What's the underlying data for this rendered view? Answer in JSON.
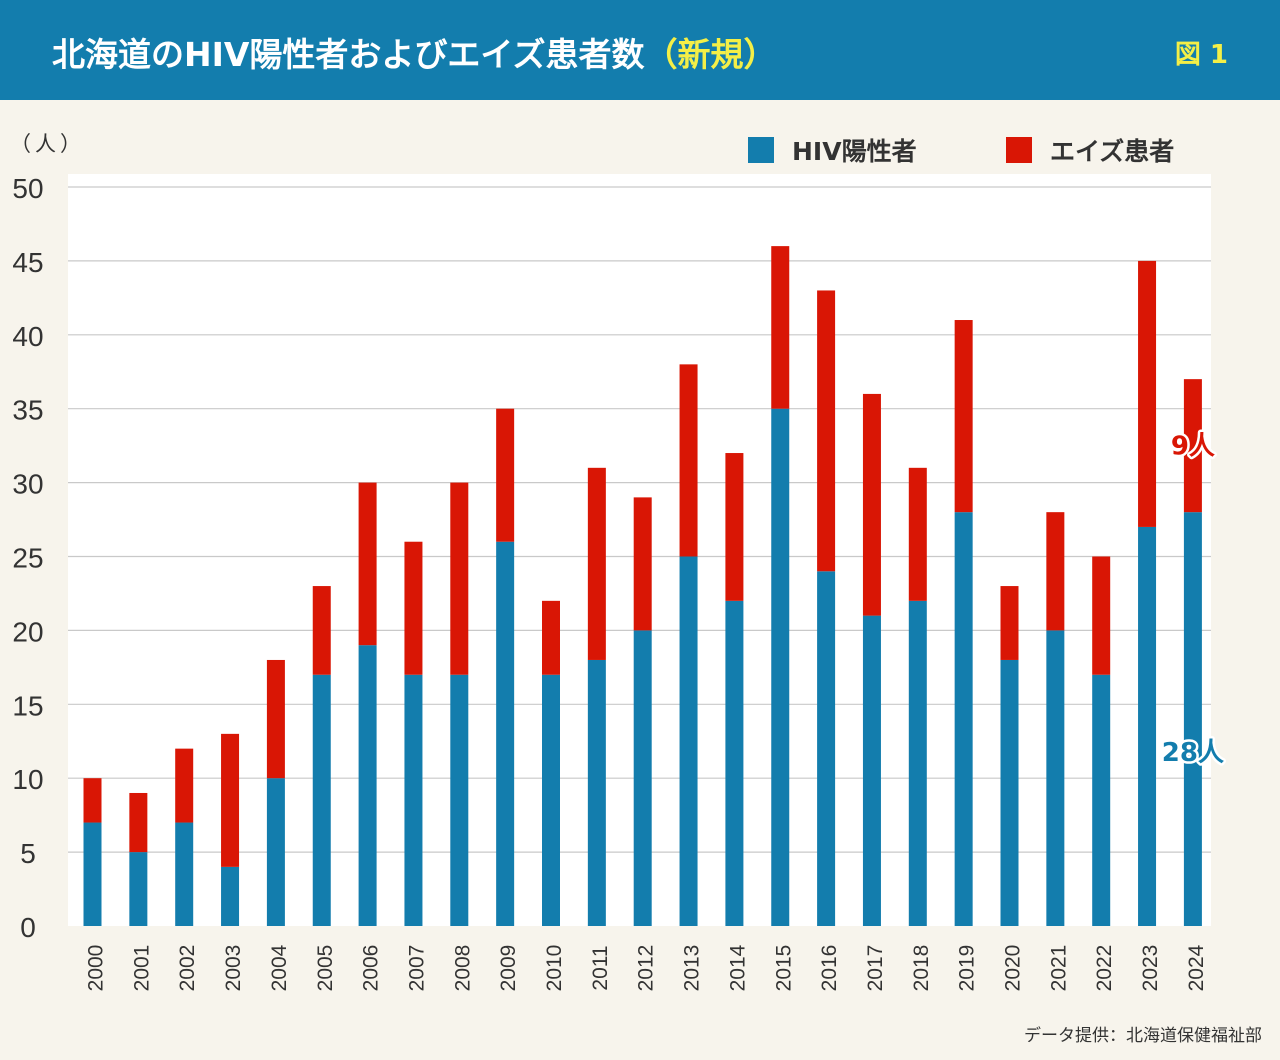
{
  "header": {
    "title_main": "北海道のHIV陽性者およびエイズ患者数",
    "title_accent": "（新規）",
    "figure_label": "図 1"
  },
  "colors": {
    "hiv": "#137dad",
    "aids": "#d91605",
    "header_bg": "#137dad",
    "accent_text": "#f4ef47"
  },
  "chart_data": {
    "type": "bar",
    "stacked": true,
    "title": "北海道のHIV陽性者およびエイズ患者数（新規）",
    "y_unit_label": "（人）",
    "ylim": [
      0,
      50
    ],
    "yticks": [
      0,
      5,
      10,
      15,
      20,
      25,
      30,
      35,
      40,
      45,
      50
    ],
    "categories": [
      "2000",
      "2001",
      "2002",
      "2003",
      "2004",
      "2005",
      "2006",
      "2007",
      "2008",
      "2009",
      "2010",
      "2011",
      "2012",
      "2013",
      "2014",
      "2015",
      "2016",
      "2017",
      "2018",
      "2019",
      "2020",
      "2021",
      "2022",
      "2023",
      "2024"
    ],
    "series": [
      {
        "name": "HIV陽性者",
        "color": "#137dad",
        "values": [
          7,
          5,
          7,
          4,
          10,
          17,
          19,
          17,
          17,
          26,
          17,
          18,
          20,
          25,
          22,
          35,
          24,
          21,
          22,
          28,
          18,
          20,
          17,
          27,
          28
        ]
      },
      {
        "name": "エイズ患者",
        "color": "#d91605",
        "values": [
          3,
          4,
          5,
          9,
          8,
          6,
          11,
          9,
          13,
          9,
          5,
          13,
          9,
          13,
          10,
          11,
          19,
          15,
          9,
          13,
          5,
          8,
          8,
          18,
          9
        ]
      }
    ],
    "annotations": [
      {
        "category": "2024",
        "series": "エイズ患者",
        "text": "9人"
      },
      {
        "category": "2024",
        "series": "HIV陽性者",
        "text": "28人"
      }
    ],
    "legend": "top-right",
    "grid": true
  },
  "source": "データ提供：北海道保健福祉部"
}
